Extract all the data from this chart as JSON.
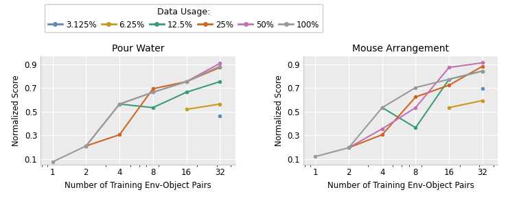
{
  "title_left": "Pour Water",
  "title_right": "Mouse Arrangement",
  "xlabel": "Number of Training Env-Object Pairs",
  "ylabel": "Normalized Score",
  "x_ticks": [
    1,
    2,
    4,
    8,
    16,
    32
  ],
  "legend_title": "Data Usage:",
  "series": [
    {
      "label": "3.125%",
      "color": "#5b8db8",
      "pour_water": {
        "x": [
          32
        ],
        "y": [
          0.465
        ]
      },
      "mouse_arrangement": {
        "x": [
          32
        ],
        "y": [
          0.695
        ]
      }
    },
    {
      "label": "6.25%",
      "color": "#c8981f",
      "pour_water": {
        "x": [
          16,
          32
        ],
        "y": [
          0.52,
          0.565
        ]
      },
      "mouse_arrangement": {
        "x": [
          16,
          32
        ],
        "y": [
          0.535,
          0.595
        ]
      }
    },
    {
      "label": "12.5%",
      "color": "#3a9b7a",
      "pour_water": {
        "x": [
          4,
          8,
          16,
          32
        ],
        "y": [
          0.565,
          0.535,
          0.665,
          0.755
        ]
      },
      "mouse_arrangement": {
        "x": [
          4,
          8,
          16,
          32
        ],
        "y": [
          0.535,
          0.365,
          0.775,
          0.845
        ]
      }
    },
    {
      "label": "25%",
      "color": "#cc6622",
      "pour_water": {
        "x": [
          2,
          4,
          8,
          16,
          32
        ],
        "y": [
          0.21,
          0.305,
          0.695,
          0.755,
          0.875
        ]
      },
      "mouse_arrangement": {
        "x": [
          2,
          4,
          8,
          16,
          32
        ],
        "y": [
          0.195,
          0.305,
          0.625,
          0.725,
          0.885
        ]
      }
    },
    {
      "label": "50%",
      "color": "#c270b5",
      "pour_water": {
        "x": [
          2,
          4,
          8,
          16,
          32
        ],
        "y": [
          0.21,
          0.565,
          0.665,
          0.755,
          0.91
        ]
      },
      "mouse_arrangement": {
        "x": [
          2,
          4,
          8,
          16,
          32
        ],
        "y": [
          0.195,
          0.355,
          0.535,
          0.875,
          0.915
        ]
      }
    },
    {
      "label": "100%",
      "color": "#999999",
      "pour_water": {
        "x": [
          1,
          2,
          4,
          8,
          16,
          32
        ],
        "y": [
          0.075,
          0.21,
          0.565,
          0.665,
          0.755,
          0.885
        ]
      },
      "mouse_arrangement": {
        "x": [
          1,
          2,
          4,
          8,
          16,
          32
        ],
        "y": [
          0.12,
          0.195,
          0.535,
          0.705,
          0.775,
          0.845
        ]
      }
    }
  ],
  "ylim": [
    0.05,
    0.97
  ],
  "yticks": [
    0.1,
    0.3,
    0.5,
    0.7,
    0.9
  ],
  "background_color": "#ebebeb",
  "figure_background": "#ffffff",
  "grid_color": "#ffffff",
  "spine_color": "#cccccc"
}
